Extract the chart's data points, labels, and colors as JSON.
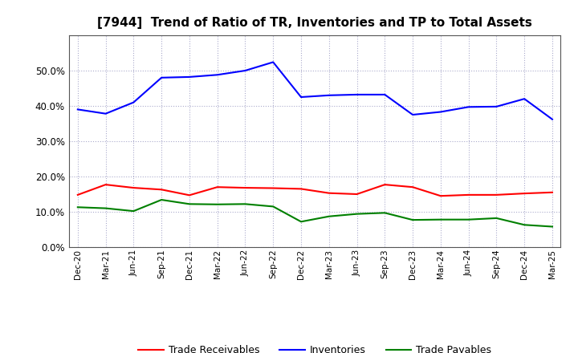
{
  "title": "[7944]  Trend of Ratio of TR, Inventories and TP to Total Assets",
  "x_labels": [
    "Dec-20",
    "Mar-21",
    "Jun-21",
    "Sep-21",
    "Dec-21",
    "Mar-22",
    "Jun-22",
    "Sep-22",
    "Dec-22",
    "Mar-23",
    "Jun-23",
    "Sep-23",
    "Dec-23",
    "Mar-24",
    "Jun-24",
    "Sep-24",
    "Dec-24",
    "Mar-25"
  ],
  "trade_receivables": [
    0.148,
    0.177,
    0.168,
    0.163,
    0.147,
    0.17,
    0.168,
    0.167,
    0.165,
    0.153,
    0.15,
    0.177,
    0.17,
    0.145,
    0.148,
    0.148,
    0.152,
    0.155
  ],
  "inventories": [
    0.39,
    0.378,
    0.41,
    0.48,
    0.482,
    0.488,
    0.5,
    0.524,
    0.425,
    0.43,
    0.432,
    0.432,
    0.375,
    0.383,
    0.397,
    0.398,
    0.42,
    0.362
  ],
  "trade_payables": [
    0.113,
    0.11,
    0.102,
    0.134,
    0.122,
    0.121,
    0.122,
    0.115,
    0.072,
    0.087,
    0.094,
    0.097,
    0.077,
    0.078,
    0.078,
    0.082,
    0.063,
    0.058
  ],
  "tr_color": "#ff0000",
  "inv_color": "#0000ff",
  "tp_color": "#008000",
  "ylim": [
    0.0,
    0.6
  ],
  "yticks": [
    0.0,
    0.1,
    0.2,
    0.3,
    0.4,
    0.5
  ],
  "background_color": "#ffffff",
  "grid_color": "#aaaacc",
  "title_fontsize": 11,
  "legend_labels": [
    "Trade Receivables",
    "Inventories",
    "Trade Payables"
  ]
}
